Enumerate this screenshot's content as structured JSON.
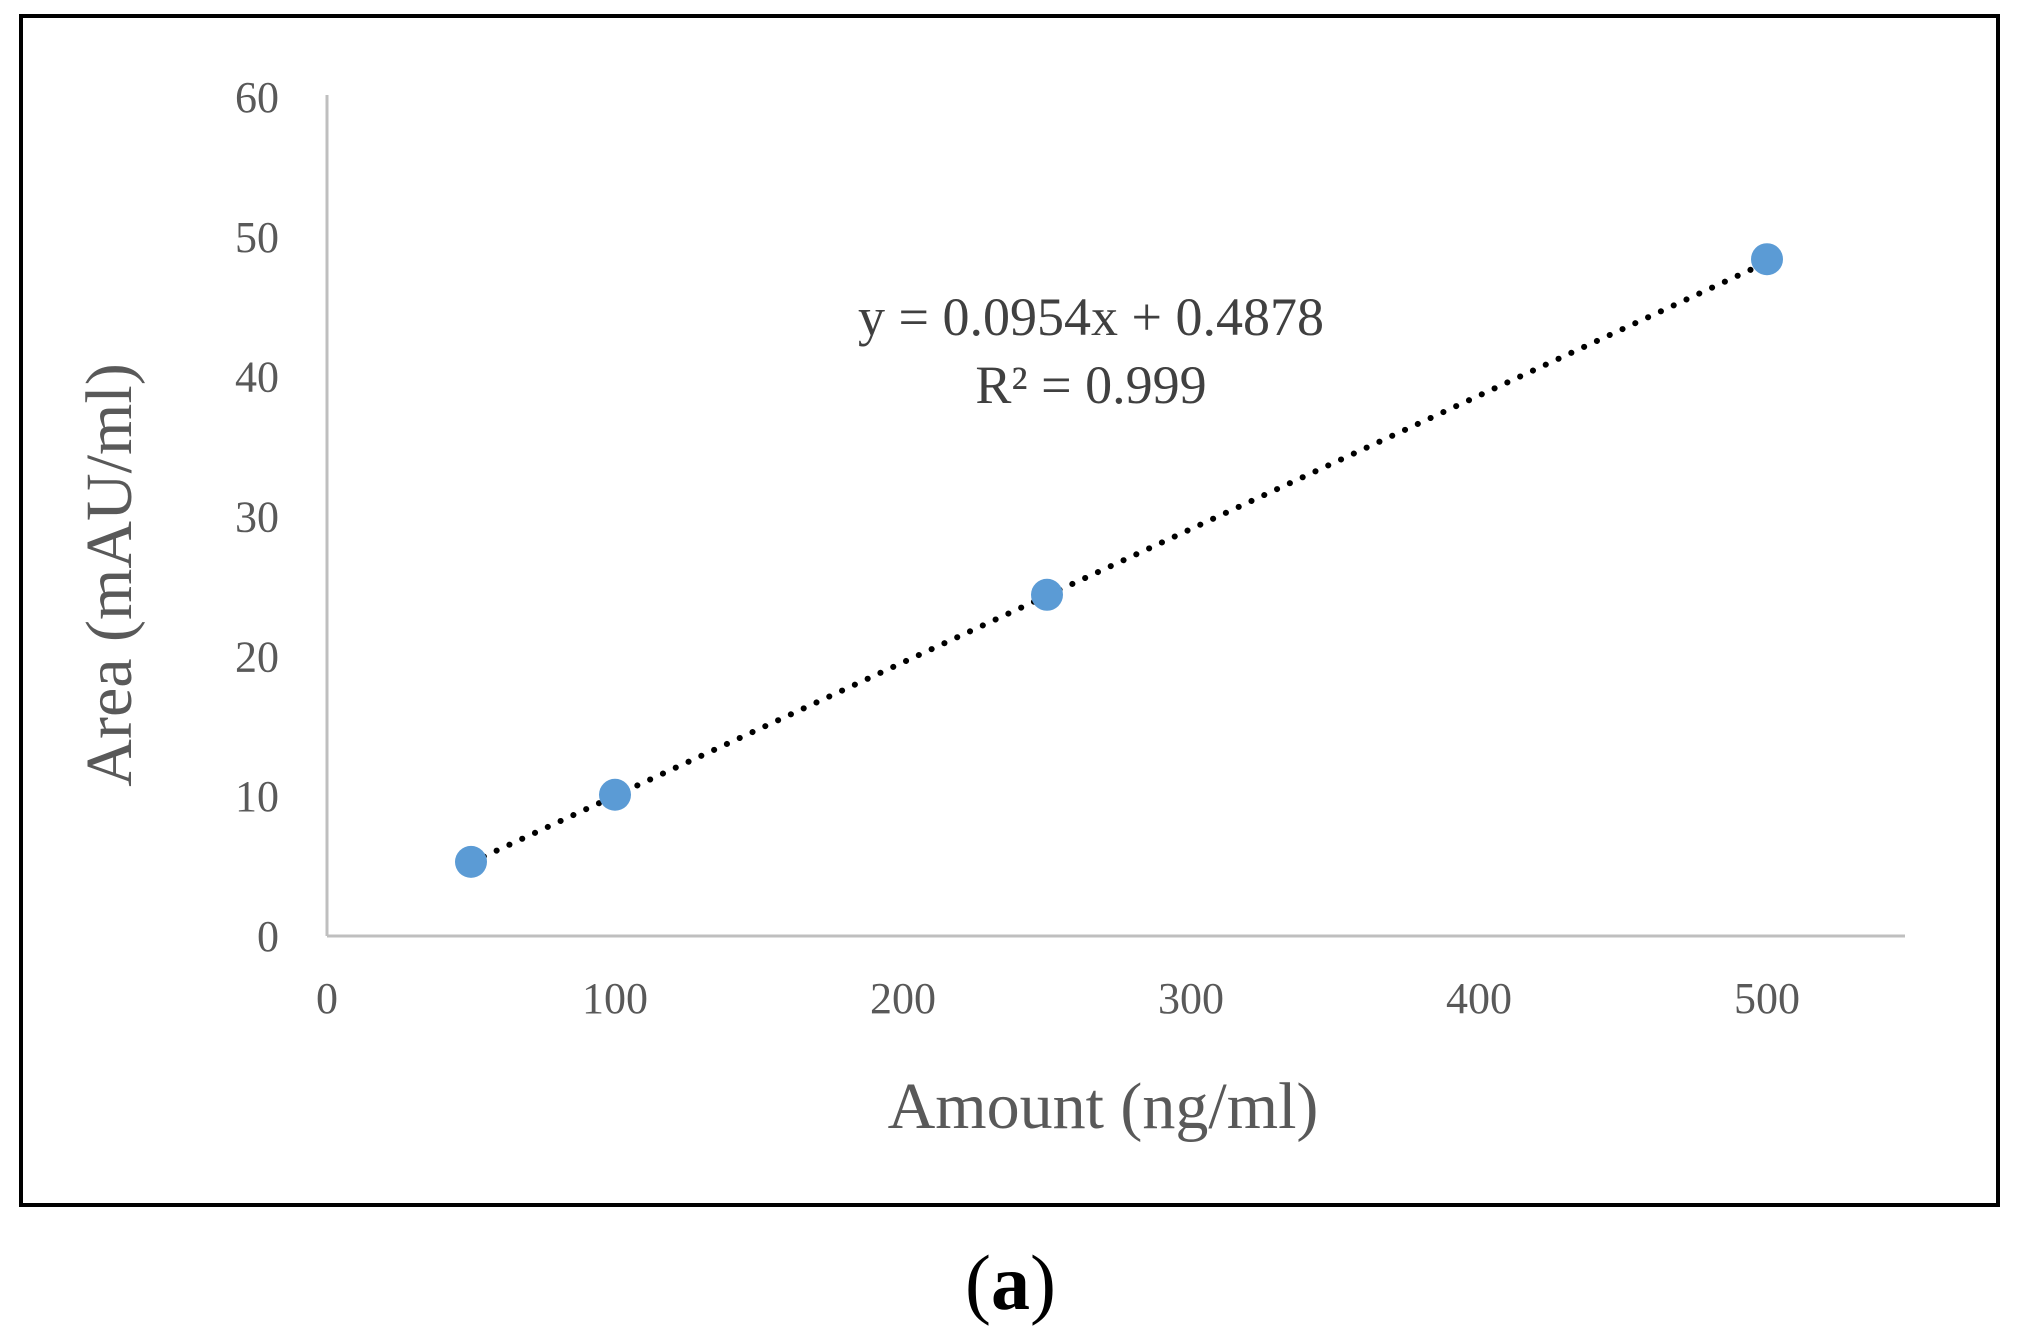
{
  "chart_data": {
    "type": "scatter",
    "title": "",
    "xlabel": "Amount (ng/ml)",
    "ylabel": "Area (mAU/ml)",
    "xlim": [
      0,
      550
    ],
    "ylim": [
      0,
      60
    ],
    "x_ticks": [
      "0",
      "100",
      "200",
      "300",
      "400",
      "500"
    ],
    "y_ticks": [
      "0",
      "10",
      "20",
      "30",
      "40",
      "50",
      "60"
    ],
    "grid": false,
    "legend": "none",
    "series": [
      {
        "x": [
          50,
          100,
          250,
          500
        ],
        "y": [
          5.3,
          10.1,
          24.4,
          48.4
        ],
        "color": "#5B9BD5"
      }
    ],
    "trendline": {
      "style": "dotted",
      "color": "#000000",
      "slope": 0.0954,
      "intercept": 0.4878,
      "x_range": [
        50,
        500
      ]
    },
    "annotations": {
      "equation": "y = 0.0954x + 0.4878",
      "r_squared": "R² = 0.999"
    }
  },
  "figure": {
    "panel_open": "(",
    "panel_letter": "a",
    "panel_close": ")"
  }
}
